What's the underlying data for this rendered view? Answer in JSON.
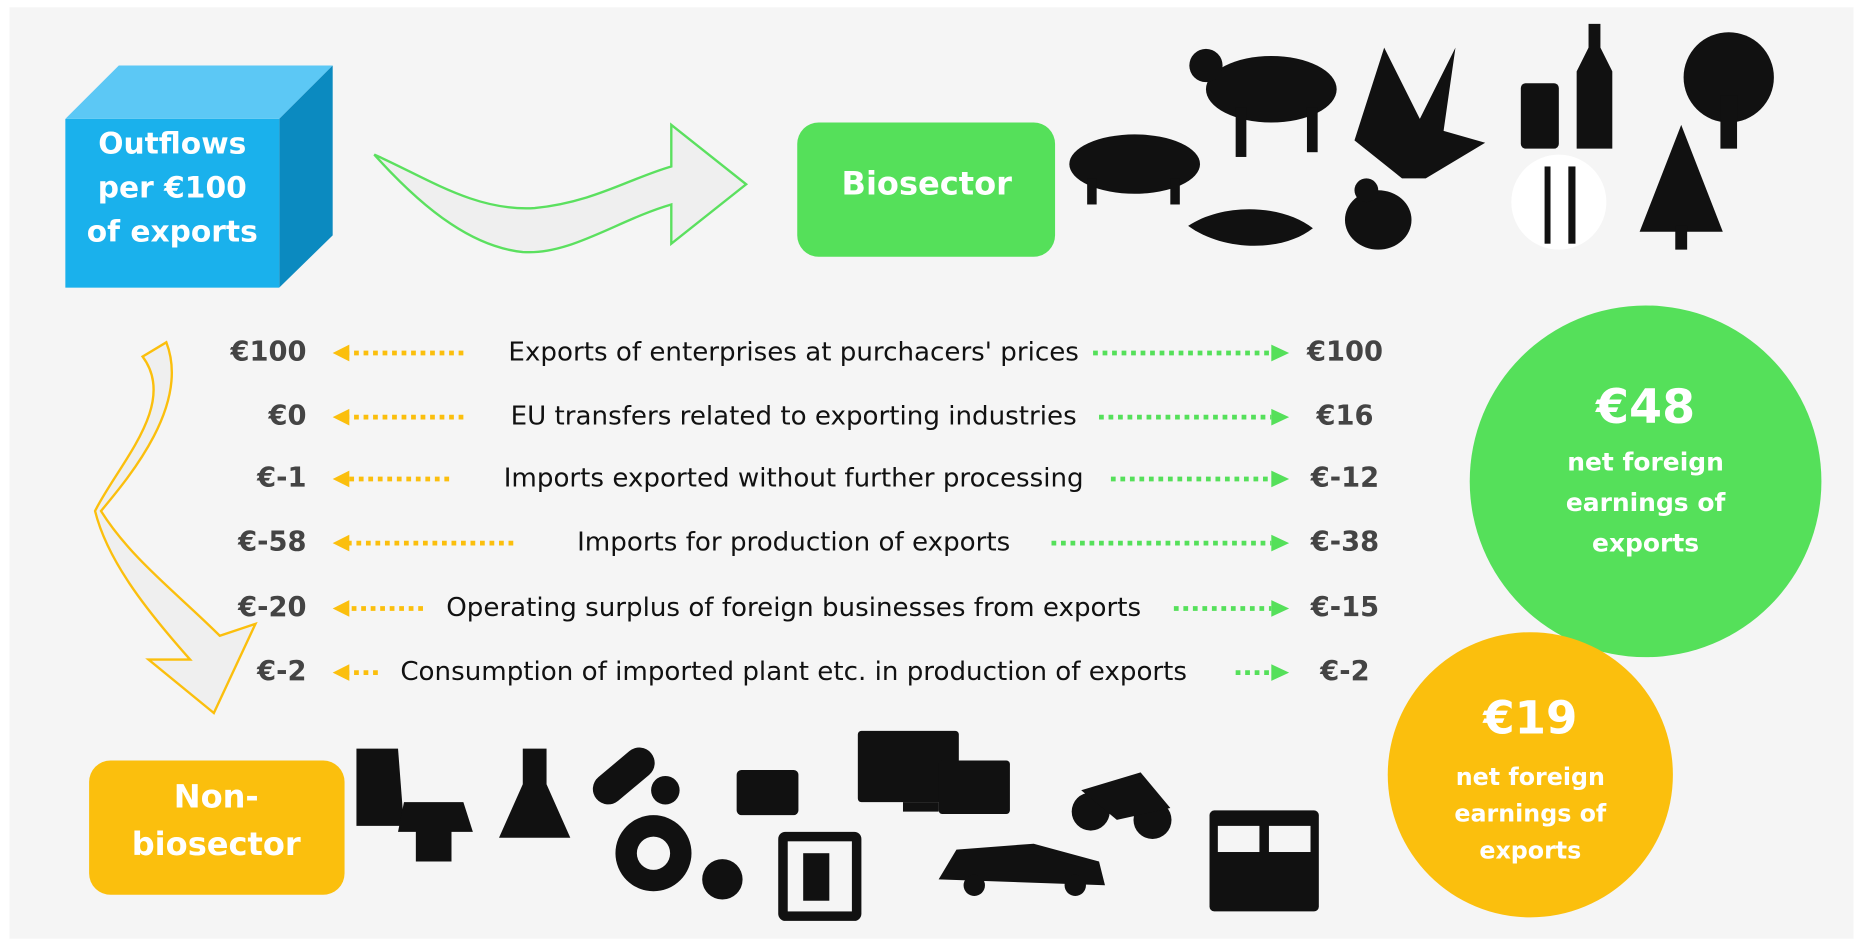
{
  "source_box": {
    "lines": [
      "Outflows",
      "per €100",
      "of exports"
    ]
  },
  "biosector": {
    "label": "Biosector"
  },
  "non_biosector": {
    "lines": [
      "Non-",
      "biosector"
    ]
  },
  "rows": [
    {
      "left": "€100",
      "label": "Exports of enterprises at purchacers' prices",
      "right": "€100"
    },
    {
      "left": "€0",
      "label": "EU transfers related to exporting industries",
      "right": "€16"
    },
    {
      "left": "€-1",
      "label": "Imports exported without further processing",
      "right": "€-12"
    },
    {
      "left": "€-58",
      "label": "Imports for production of exports",
      "right": "€-38"
    },
    {
      "left": "€-20",
      "label": "Operating surplus of foreign businesses from exports",
      "right": "€-15"
    },
    {
      "left": "€-2",
      "label": "Consumption of imported plant etc. in production of exports",
      "right": "€-2"
    }
  ],
  "bio_total": {
    "value": "€48",
    "lines": [
      "net foreign",
      "earnings of",
      "exports"
    ]
  },
  "nonbio_total": {
    "value": "€19",
    "lines": [
      "net foreign",
      "earnings of",
      "exports"
    ]
  }
}
